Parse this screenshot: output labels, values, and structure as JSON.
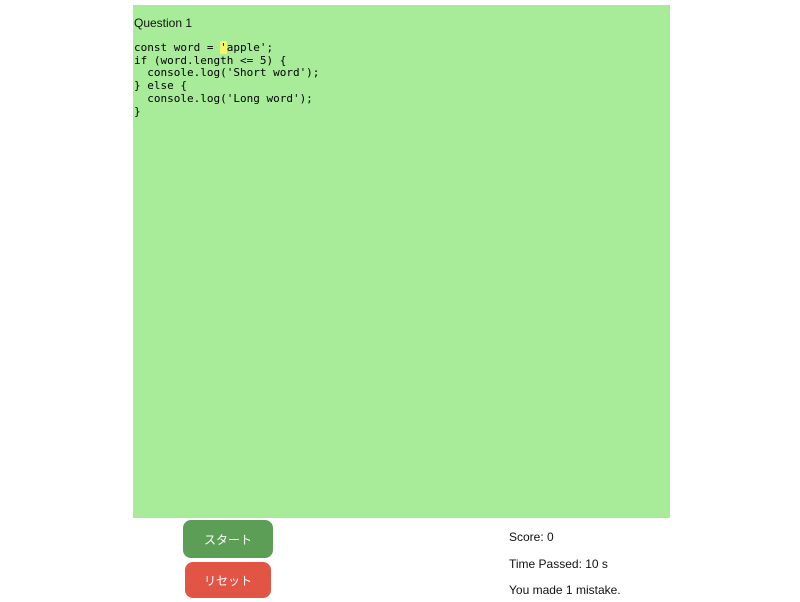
{
  "question": {
    "title": "Question 1"
  },
  "code": {
    "before_cursor": "const word = ",
    "cursor_char": "'",
    "after_cursor": "apple';\nif (word.length <= 5) {\n  console.log('Short word');\n} else {\n  console.log('Long word');\n}"
  },
  "colors": {
    "panel": "#a8ec9a",
    "cursor_highlight": "#f5f56a",
    "start": "#5c9e56",
    "reset": "#e25444"
  },
  "buttons": {
    "start": "スタート",
    "reset": "リセット"
  },
  "stats": {
    "score": "Score: 0",
    "time": "Time Passed: 10 s",
    "mistakes": "You made 1 mistake."
  }
}
